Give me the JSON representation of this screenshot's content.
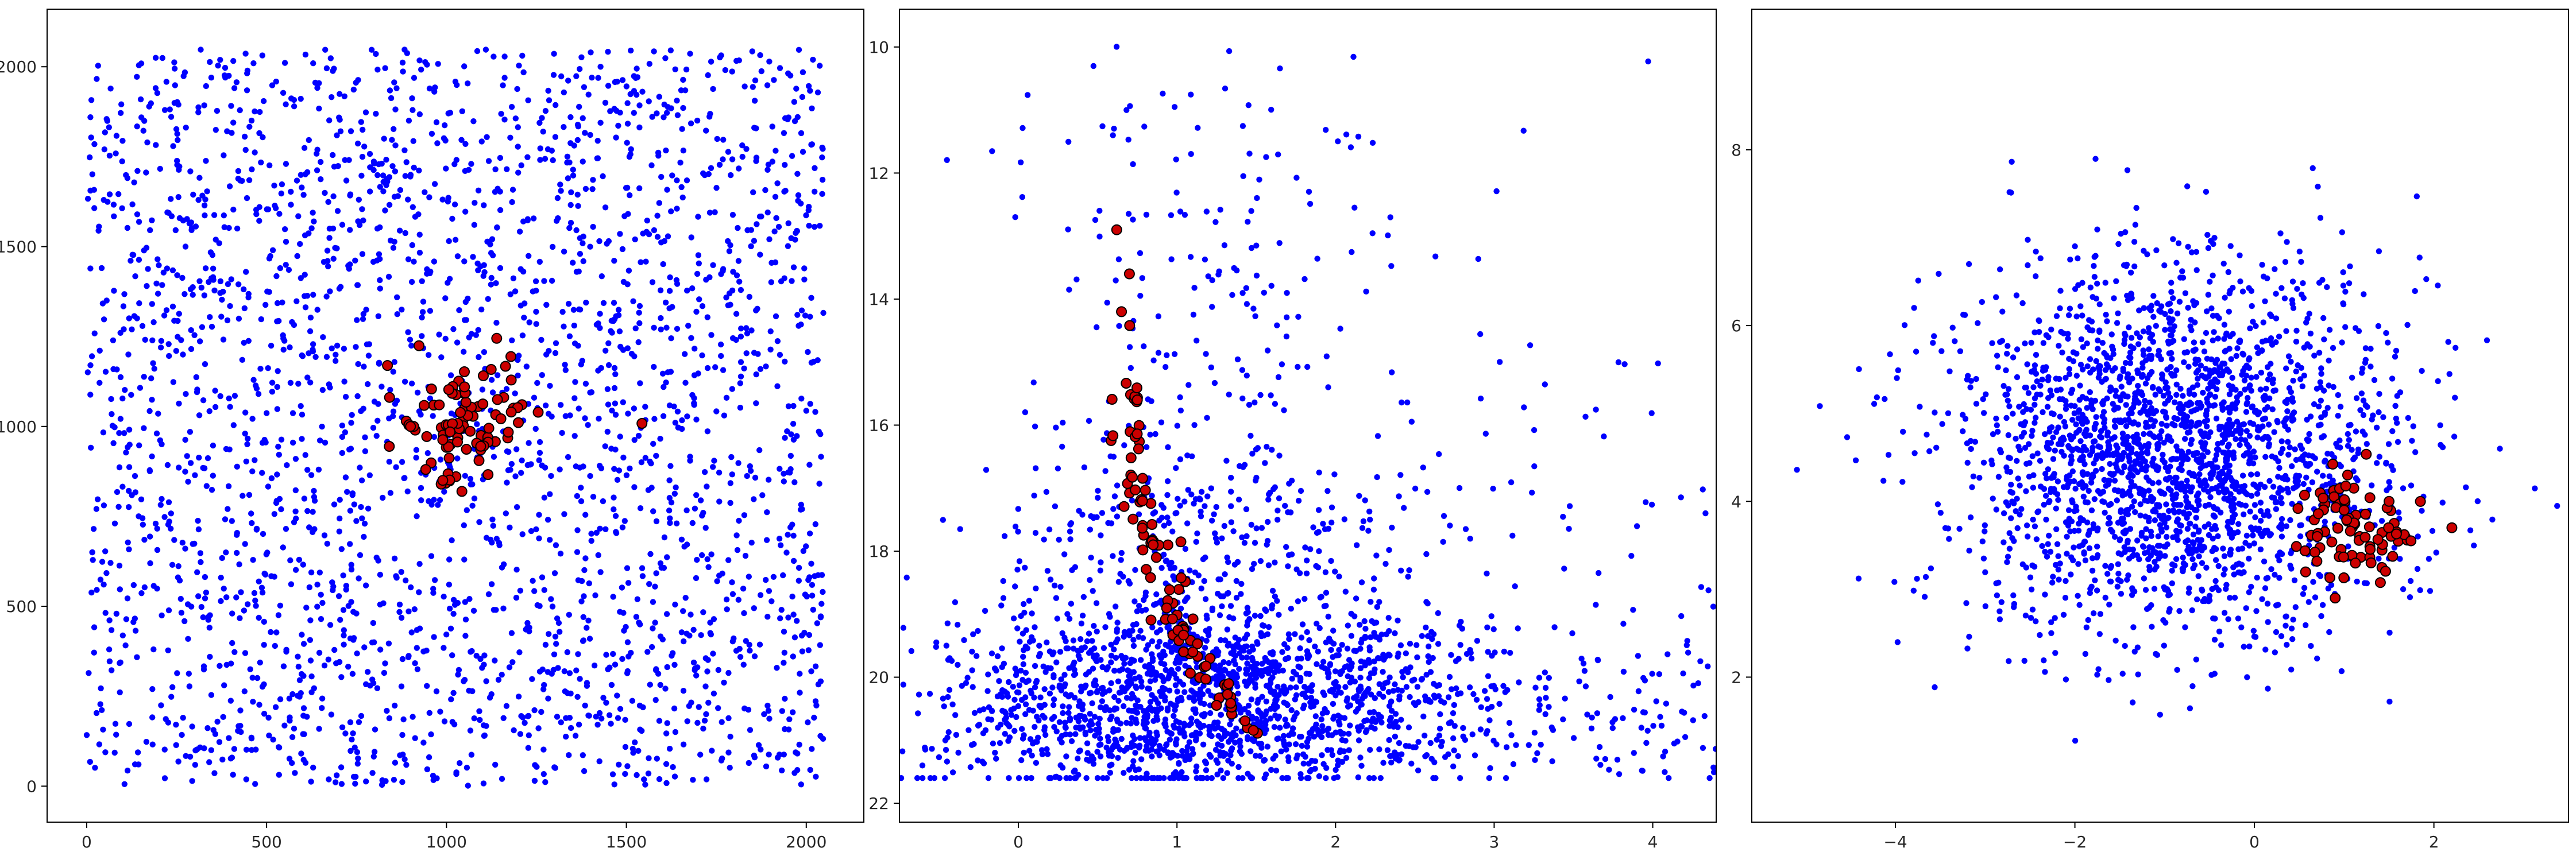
{
  "chart_data": [
    {
      "type": "scatter",
      "title": "",
      "xlabel": "",
      "ylabel": "",
      "xlim": [
        -110,
        2160
      ],
      "ylim": [
        -100,
        2160
      ],
      "y_inverted": false,
      "xticks": [
        0,
        500,
        1000,
        1500,
        2000
      ],
      "yticks": [
        0,
        500,
        1000,
        1500,
        2000
      ],
      "grid": false,
      "background": {
        "count": 2600,
        "color": "#0000ff",
        "distribution": "uniform",
        "x_range": [
          0,
          2048
        ],
        "y_range": [
          0,
          2048
        ]
      },
      "cluster": {
        "count": 90,
        "fill": "#cc0000",
        "edge": "#000000",
        "center": [
          1040,
          1020
        ],
        "spread": [
          95,
          85
        ]
      },
      "sample_points": [
        {
          "x": 980,
          "y": 1060
        },
        {
          "x": 1010,
          "y": 985
        },
        {
          "x": 1050,
          "y": 1110
        },
        {
          "x": 1095,
          "y": 945
        },
        {
          "x": 1180,
          "y": 1040
        },
        {
          "x": 900,
          "y": 1000
        }
      ]
    },
    {
      "type": "scatter",
      "title": "",
      "xlabel": "",
      "ylabel": "",
      "xlim": [
        -0.75,
        4.4
      ],
      "ylim": [
        22.3,
        9.4
      ],
      "y_inverted": true,
      "xticks": [
        0,
        1,
        2,
        3,
        4
      ],
      "yticks": [
        10,
        12,
        14,
        16,
        18,
        20,
        22
      ],
      "grid": false,
      "background": {
        "count": 2400,
        "color": "#0000ff",
        "distribution": "color-magnitude",
        "x_center": 1.15,
        "x_spread": 0.6,
        "y_peak": 20.4,
        "y_bright_limit": 9.7,
        "y_faint_limit": 21.6
      },
      "cluster": {
        "count": 90,
        "fill": "#cc0000",
        "edge": "#000000",
        "sequence": [
          [
            0.62,
            12.9
          ],
          [
            0.68,
            14.5
          ],
          [
            0.72,
            16.0
          ],
          [
            0.8,
            17.6
          ],
          [
            0.95,
            18.8
          ],
          [
            1.15,
            19.8
          ],
          [
            1.45,
            20.8
          ]
        ]
      },
      "sample_points": [
        {
          "x": 0.62,
          "y": 12.9
        },
        {
          "x": 0.7,
          "y": 13.6
        },
        {
          "x": 0.65,
          "y": 14.2
        },
        {
          "x": 0.75,
          "y": 15.6
        },
        {
          "x": 0.85,
          "y": 17.9
        },
        {
          "x": 1.1,
          "y": 19.6
        }
      ]
    },
    {
      "type": "scatter",
      "title": "",
      "xlabel": "",
      "ylabel": "",
      "xlim": [
        -5.6,
        3.5
      ],
      "ylim": [
        0.35,
        9.6
      ],
      "y_inverted": false,
      "xticks": [
        -4,
        -2,
        0,
        2
      ],
      "yticks": [
        2,
        4,
        6,
        8
      ],
      "grid": false,
      "background": {
        "count": 2300,
        "color": "#0000ff",
        "distribution": "gaussian",
        "center": [
          -0.9,
          4.6
        ],
        "spread": [
          1.25,
          1.05
        ]
      },
      "cluster": {
        "count": 80,
        "fill": "#cc0000",
        "edge": "#000000",
        "center": [
          1.1,
          3.7
        ],
        "spread": [
          0.35,
          0.3
        ]
      },
      "sample_points": [
        {
          "x": 1.0,
          "y": 3.9
        },
        {
          "x": 0.7,
          "y": 3.6
        },
        {
          "x": 1.3,
          "y": 3.3
        },
        {
          "x": 1.5,
          "y": 4.0
        },
        {
          "x": 0.9,
          "y": 2.9
        },
        {
          "x": 2.2,
          "y": 3.7
        }
      ]
    }
  ]
}
